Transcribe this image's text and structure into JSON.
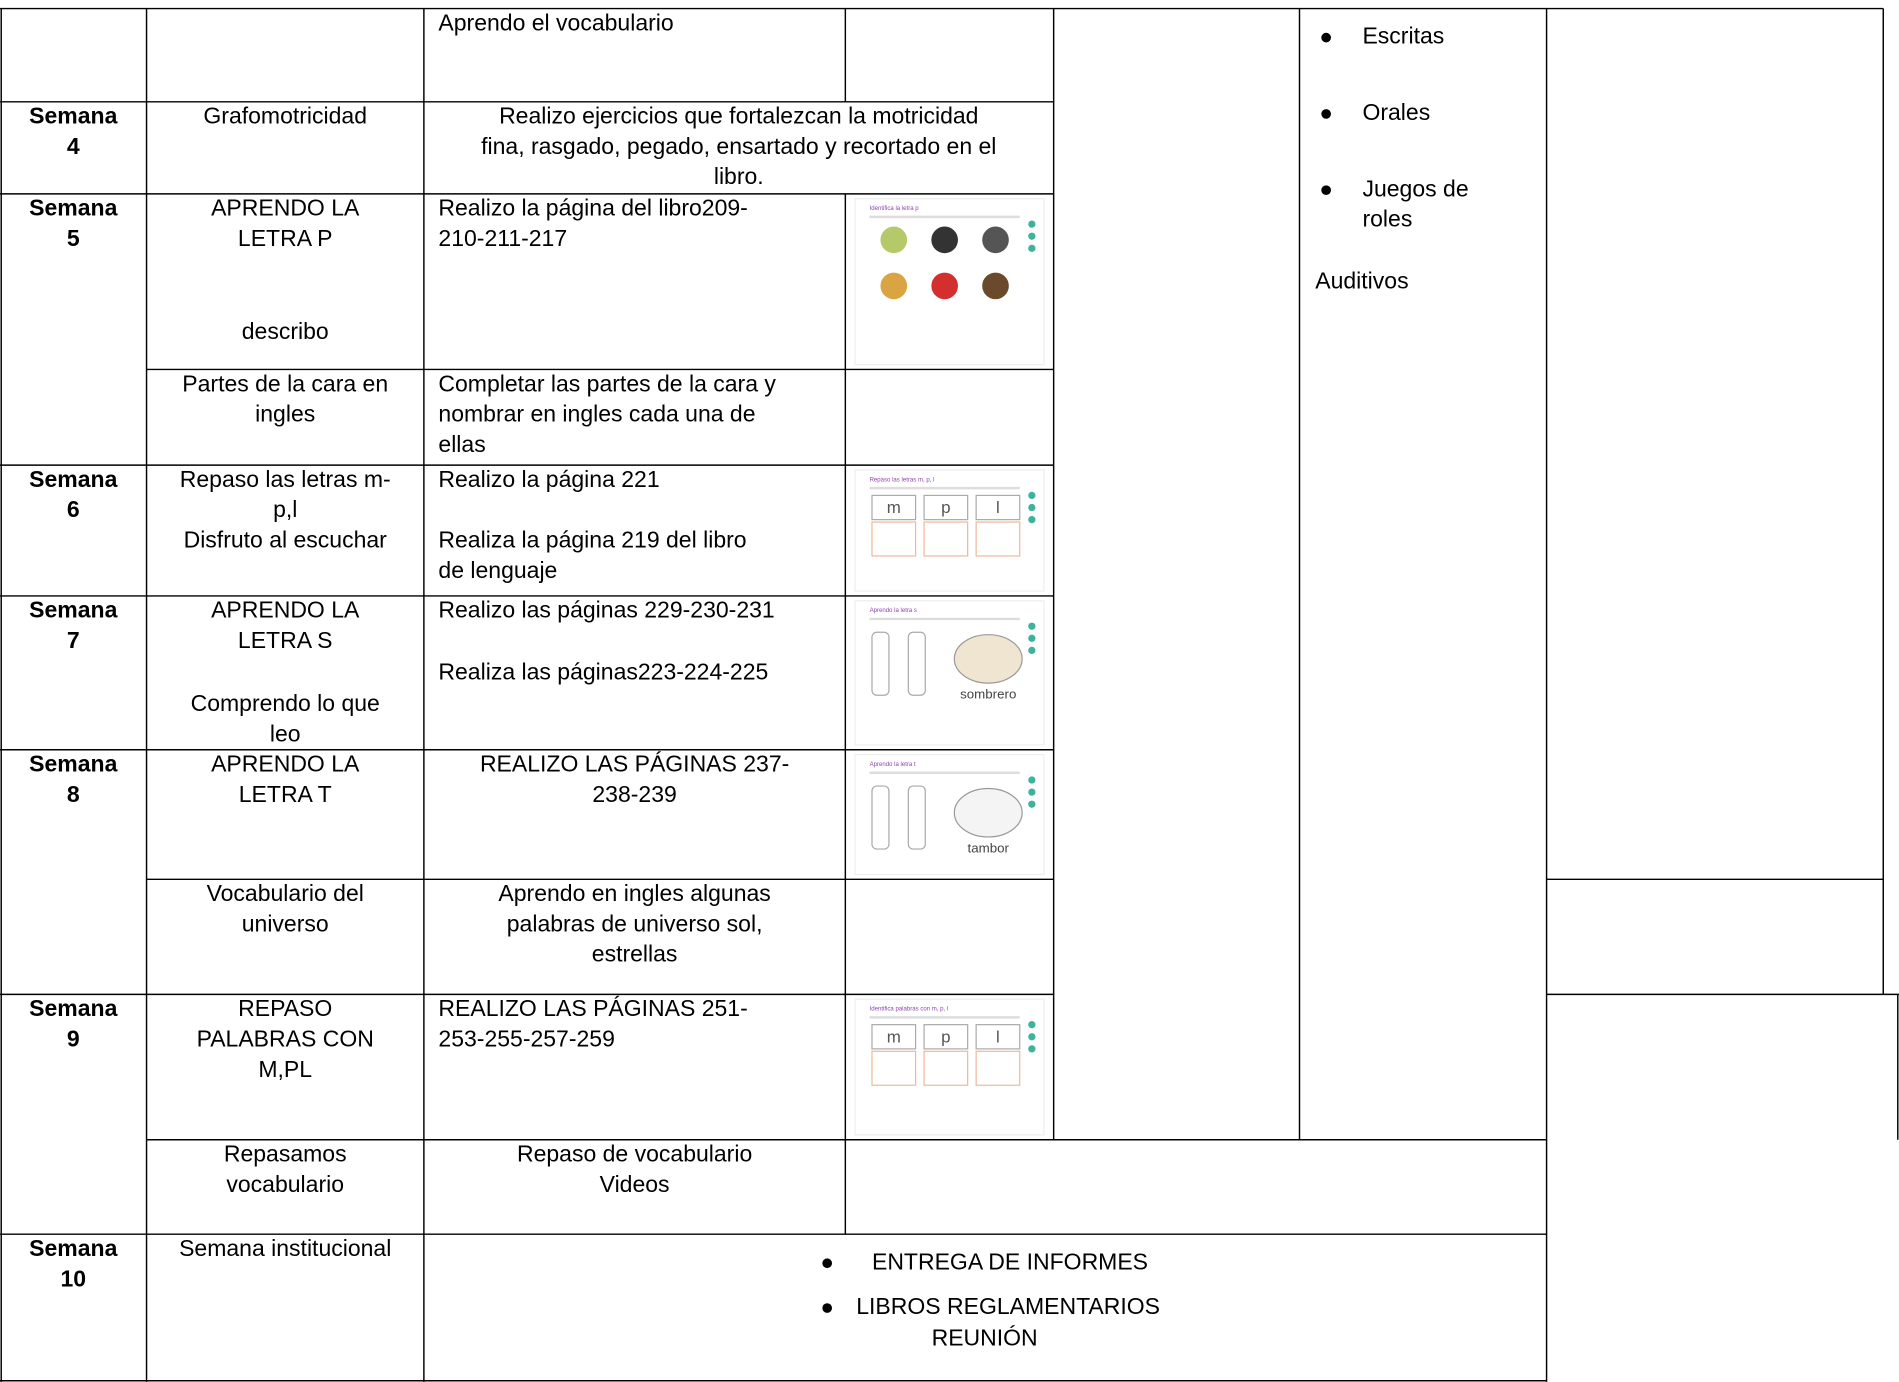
{
  "cells": [
    {
      "lines": [
        "Aprendo el vocabulario"
      ]
    },
    {
      "lines": [
        "Semana",
        "4"
      ]
    },
    {
      "lines": [
        "Grafomotricidad"
      ]
    },
    {
      "lines": [
        "Realizo ejercicios que fortalezcan la motricidad",
        "fina, rasgado, pegado, ensartado y recortado en el",
        "libro."
      ]
    },
    {
      "lines": [
        "Semana",
        "5"
      ]
    },
    {
      "lines": [
        "APRENDO LA",
        "LETRA P"
      ]
    },
    {
      "lines": [
        "describo"
      ]
    },
    {
      "lines": [
        "Realizo la página del libro209-",
        "210-211-217"
      ]
    },
    {
      "lines": [
        "Partes de la cara en",
        "ingles"
      ]
    },
    {
      "lines": [
        "Completar las partes de la cara y",
        "nombrar en ingles cada una de",
        "ellas"
      ]
    },
    {
      "lines": [
        "Semana",
        "6"
      ]
    },
    {
      "lines": [
        "Repaso las letras m-",
        "p,l",
        "Disfruto al escuchar"
      ]
    },
    {
      "lines": [
        "Realizo la página 221"
      ]
    },
    {
      "lines": [
        "Realiza la página 219 del libro",
        "de lenguaje"
      ]
    },
    {
      "lines": [
        "Semana",
        "7"
      ]
    },
    {
      "lines": [
        "APRENDO LA",
        "LETRA S"
      ]
    },
    {
      "lines": [
        "Comprendo lo que",
        "leo"
      ]
    },
    {
      "lines": [
        "Realizo las páginas 229-230-231"
      ]
    },
    {
      "lines": [
        "Realiza las páginas223-224-225"
      ]
    },
    {
      "lines": [
        "Semana",
        "8"
      ]
    },
    {
      "lines": [
        "APRENDO LA",
        "LETRA T"
      ]
    },
    {
      "lines": [
        "REALIZO LAS PÁGINAS 237-",
        "238-239"
      ]
    },
    {
      "lines": [
        "Vocabulario del",
        "universo"
      ]
    },
    {
      "lines": [
        "Aprendo en ingles algunas",
        "palabras de universo sol,",
        "estrellas"
      ]
    },
    {
      "lines": [
        "Semana",
        "9"
      ]
    },
    {
      "lines": [
        "REPASO",
        "PALABRAS CON",
        "M,PL"
      ]
    },
    {
      "lines": [
        "REALIZO LAS PÁGINAS 251-",
        "253-255-257-259"
      ]
    },
    {
      "lines": [
        "Repasamos",
        "vocabulario"
      ]
    },
    {
      "lines": [
        "Repaso de vocabulario",
        "Videos"
      ]
    },
    {
      "lines": [
        "Semana",
        "10"
      ]
    },
    {
      "lines": [
        "Semana institucional"
      ]
    }
  ],
  "resources": {
    "bullets": [
      [
        "Escritas"
      ],
      [
        "Orales"
      ],
      [
        "Juegos de",
        "roles"
      ]
    ],
    "plain": [
      "Auditivos"
    ]
  },
  "institutional": {
    "bullets": [
      [
        "ENTREGA DE INFORMES"
      ],
      [
        "LIBROS REGLAMENTARIOS"
      ]
    ],
    "plain": [
      "REUNIÓN"
    ]
  },
  "thumbnails": [
    {
      "title": "Identifica la letra p"
    },
    {
      "title": "Repaso las letras m, p, l",
      "letters": [
        "m",
        "p",
        "l"
      ]
    },
    {
      "title": "Aprendo la letra s",
      "word": "sombrero"
    },
    {
      "title": "Aprendo la letra t",
      "word": "tambor"
    },
    {
      "title": "Identifica palabras con m, p, l",
      "letters": [
        "m",
        "p",
        "l"
      ]
    }
  ]
}
